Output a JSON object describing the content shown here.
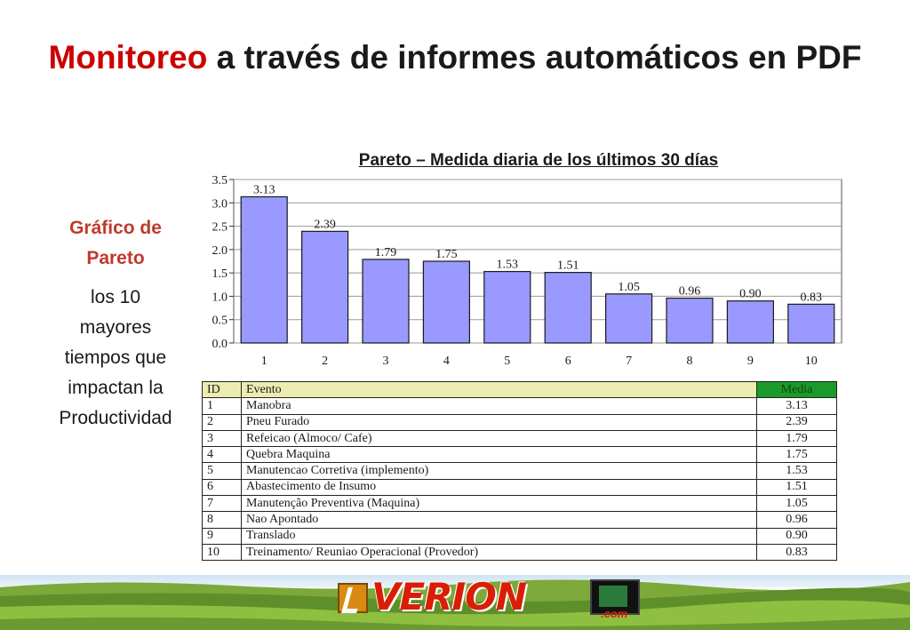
{
  "slide": {
    "title_accent": "Monitoreo",
    "title_rest": " a través de informes automáticos en PDF"
  },
  "side": {
    "heading_line1": "Gráfico de",
    "heading_line2": "Pareto",
    "text_lines": [
      "los 10",
      "mayores",
      "tiempos que",
      "impactan la",
      "Productividad"
    ]
  },
  "chart_data": {
    "type": "bar",
    "title": "Pareto – Medida diaria de los últimos 30 días",
    "categories": [
      "1",
      "2",
      "3",
      "4",
      "5",
      "6",
      "7",
      "8",
      "9",
      "10"
    ],
    "values": [
      3.13,
      2.39,
      1.79,
      1.75,
      1.53,
      1.51,
      1.05,
      0.96,
      0.9,
      0.83
    ],
    "data_labels": [
      "3.13",
      "2.39",
      "1.79",
      "1.75",
      "1.53",
      "1.51",
      "1.05",
      "0.96",
      "0.90",
      "0.83"
    ],
    "ylim": [
      0,
      3.5
    ],
    "yticks": [
      "0.0",
      "0.5",
      "1.0",
      "1.5",
      "2.0",
      "2.5",
      "3.0",
      "3.5"
    ],
    "grid": true,
    "colors": {
      "bar": "#9999ff",
      "bar_stroke": "#1a1a1a",
      "grid": "#9a9a9a"
    }
  },
  "table": {
    "headers": {
      "id": "ID",
      "event": "Evento",
      "media": "Media"
    },
    "rows": [
      {
        "id": "1",
        "event": "Manobra",
        "media": "3.13"
      },
      {
        "id": "2",
        "event": "Pneu Furado",
        "media": "2.39"
      },
      {
        "id": "3",
        "event": "Refeicao (Almoco/ Cafe)",
        "media": "1.79"
      },
      {
        "id": "4",
        "event": "Quebra Maquina",
        "media": "1.75"
      },
      {
        "id": "5",
        "event": "Manutencao Corretiva (implemento)",
        "media": "1.53"
      },
      {
        "id": "6",
        "event": "Abastecimento de Insumo",
        "media": "1.51"
      },
      {
        "id": "7",
        "event": "Manutenção Preventiva (Maquina)",
        "media": "1.05"
      },
      {
        "id": "8",
        "event": "Nao Apontado",
        "media": "0.96"
      },
      {
        "id": "9",
        "event": "Translado",
        "media": "0.90"
      },
      {
        "id": "10",
        "event": "Treinamento/ Reuniao Operacional (Provedor)",
        "media": "0.83"
      }
    ],
    "colors": {
      "header": "#ecebb2",
      "media_header": "#1a9a2a"
    }
  },
  "footer": {
    "brand": "VERION",
    "brand_sub": ".com",
    "colors": {
      "brand": "#d81e05",
      "badge": "#d98a12"
    }
  }
}
